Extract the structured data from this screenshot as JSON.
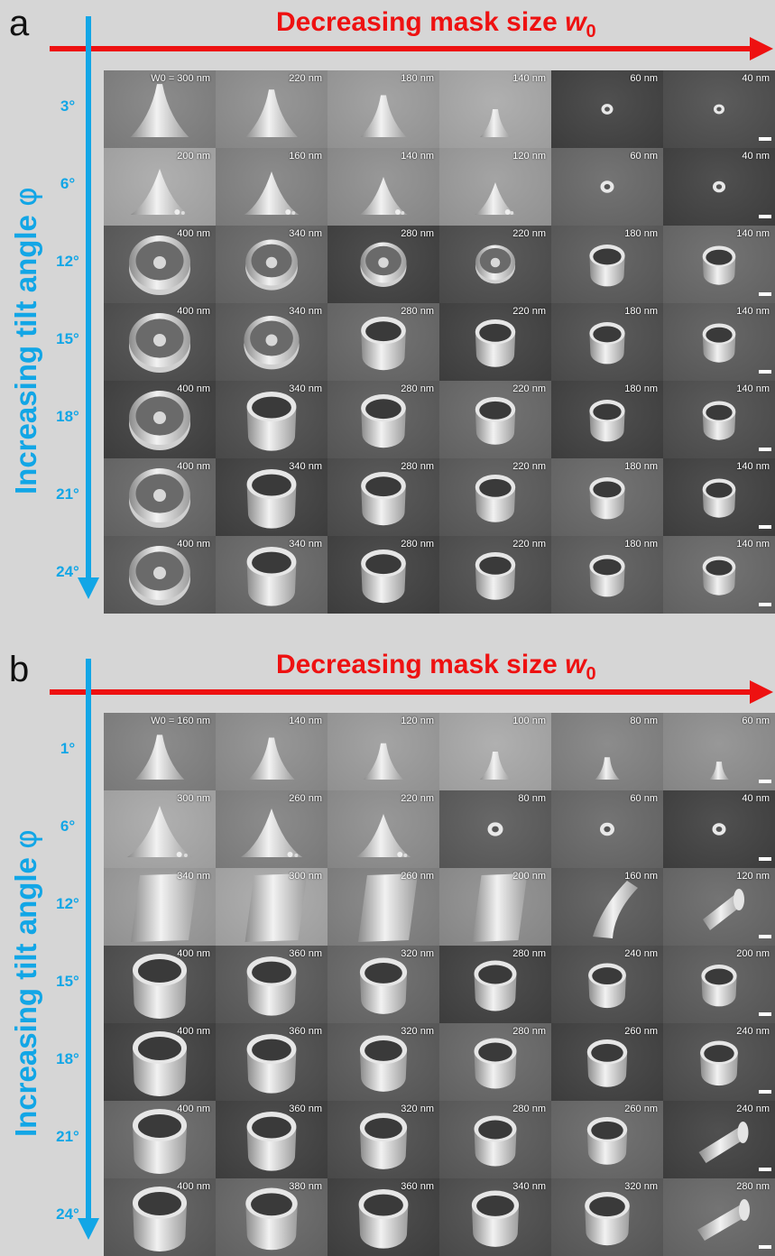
{
  "panels": [
    {
      "id": "a",
      "letter": "a",
      "headline": "Decreasing mask size ",
      "headline_symbol": "w",
      "headline_sub": "0",
      "vertical_label": "Increasing tilt angle ",
      "vertical_symbol": "φ",
      "rows": [
        {
          "angle": "3°",
          "cells": [
            {
              "label": "W0 = 300 nm",
              "kind": "cone",
              "size": 0.95
            },
            {
              "label": "220 nm",
              "kind": "cone",
              "size": 0.85
            },
            {
              "label": "180 nm",
              "kind": "cone",
              "size": 0.75
            },
            {
              "label": "140 nm",
              "kind": "cone",
              "size": 0.5
            },
            {
              "label": "60 nm",
              "kind": "dot",
              "size": 0.35
            },
            {
              "label": "40 nm",
              "kind": "dot",
              "size": 0.3
            }
          ]
        },
        {
          "angle": "6°",
          "cells": [
            {
              "label": "200 nm",
              "kind": "spike",
              "size": 0.85
            },
            {
              "label": "160 nm",
              "kind": "spike",
              "size": 0.8
            },
            {
              "label": "140 nm",
              "kind": "spike",
              "size": 0.7
            },
            {
              "label": "120 nm",
              "kind": "spike",
              "size": 0.6
            },
            {
              "label": "60 nm",
              "kind": "dot",
              "size": 0.45
            },
            {
              "label": "40 nm",
              "kind": "dot",
              "size": 0.4
            }
          ]
        },
        {
          "angle": "12°",
          "cells": [
            {
              "label": "400 nm",
              "kind": "disk",
              "size": 1.0
            },
            {
              "label": "340 nm",
              "kind": "disk",
              "size": 0.85
            },
            {
              "label": "280 nm",
              "kind": "disk",
              "size": 0.75
            },
            {
              "label": "220 nm",
              "kind": "disk",
              "size": 0.65
            },
            {
              "label": "180 nm",
              "kind": "tube",
              "size": 0.6
            },
            {
              "label": "140 nm",
              "kind": "tube",
              "size": 0.55
            }
          ]
        },
        {
          "angle": "15°",
          "cells": [
            {
              "label": "400 nm",
              "kind": "disk",
              "size": 1.0
            },
            {
              "label": "340 nm",
              "kind": "disk",
              "size": 0.9
            },
            {
              "label": "280 nm",
              "kind": "tube",
              "size": 0.8
            },
            {
              "label": "220 nm",
              "kind": "tube",
              "size": 0.7
            },
            {
              "label": "180 nm",
              "kind": "tube",
              "size": 0.6
            },
            {
              "label": "140 nm",
              "kind": "tube",
              "size": 0.55
            }
          ]
        },
        {
          "angle": "18°",
          "cells": [
            {
              "label": "400 nm",
              "kind": "disk",
              "size": 1.0
            },
            {
              "label": "340 nm",
              "kind": "tube",
              "size": 0.9
            },
            {
              "label": "280 nm",
              "kind": "tube",
              "size": 0.8
            },
            {
              "label": "220 nm",
              "kind": "tube",
              "size": 0.7
            },
            {
              "label": "180 nm",
              "kind": "tube",
              "size": 0.6
            },
            {
              "label": "140 nm",
              "kind": "tube",
              "size": 0.55
            }
          ]
        },
        {
          "angle": "21°",
          "cells": [
            {
              "label": "400 nm",
              "kind": "disk",
              "size": 1.0
            },
            {
              "label": "340 nm",
              "kind": "tube",
              "size": 0.9
            },
            {
              "label": "280 nm",
              "kind": "tube",
              "size": 0.8
            },
            {
              "label": "220 nm",
              "kind": "tube",
              "size": 0.7
            },
            {
              "label": "180 nm",
              "kind": "tube",
              "size": 0.6
            },
            {
              "label": "140 nm",
              "kind": "tube",
              "size": 0.55
            }
          ]
        },
        {
          "angle": "24°",
          "cells": [
            {
              "label": "400 nm",
              "kind": "disk",
              "size": 1.0
            },
            {
              "label": "340 nm",
              "kind": "tube",
              "size": 0.9
            },
            {
              "label": "280 nm",
              "kind": "tube",
              "size": 0.8
            },
            {
              "label": "220 nm",
              "kind": "tube",
              "size": 0.7
            },
            {
              "label": "180 nm",
              "kind": "tube",
              "size": 0.6
            },
            {
              "label": "140 nm",
              "kind": "tube",
              "size": 0.55
            }
          ]
        }
      ]
    },
    {
      "id": "b",
      "letter": "b",
      "headline": "Decreasing mask size ",
      "headline_symbol": "w",
      "headline_sub": "0",
      "vertical_label": "Increasing tilt angle ",
      "vertical_symbol": "φ",
      "rows": [
        {
          "angle": "1°",
          "cells": [
            {
              "label": "W0 = 160 nm",
              "kind": "cone",
              "size": 0.8
            },
            {
              "label": "140 nm",
              "kind": "cone",
              "size": 0.75
            },
            {
              "label": "120 nm",
              "kind": "cone",
              "size": 0.65
            },
            {
              "label": "100 nm",
              "kind": "cone",
              "size": 0.5
            },
            {
              "label": "80 nm",
              "kind": "cone",
              "size": 0.4
            },
            {
              "label": "60 nm",
              "kind": "cone",
              "size": 0.32
            }
          ]
        },
        {
          "angle": "6°",
          "cells": [
            {
              "label": "300 nm",
              "kind": "spike",
              "size": 0.95
            },
            {
              "label": "260 nm",
              "kind": "spike",
              "size": 0.9
            },
            {
              "label": "220 nm",
              "kind": "spike",
              "size": 0.8
            },
            {
              "label": "80 nm",
              "kind": "dot",
              "size": 0.55
            },
            {
              "label": "60 nm",
              "kind": "dot",
              "size": 0.5
            },
            {
              "label": "40 nm",
              "kind": "dot",
              "size": 0.45
            }
          ]
        },
        {
          "angle": "12°",
          "cells": [
            {
              "label": "340 nm",
              "kind": "pillar",
              "size": 1.0
            },
            {
              "label": "300 nm",
              "kind": "pillar",
              "size": 0.9
            },
            {
              "label": "260 nm",
              "kind": "pillar",
              "size": 0.85
            },
            {
              "label": "200 nm",
              "kind": "pillar",
              "size": 0.75
            },
            {
              "label": "160 nm",
              "kind": "bent",
              "size": 0.7
            },
            {
              "label": "120 nm",
              "kind": "fallen",
              "size": 0.6
            }
          ]
        },
        {
          "angle": "15°",
          "cells": [
            {
              "label": "400 nm",
              "kind": "tube",
              "size": 1.0
            },
            {
              "label": "360  nm",
              "kind": "tube",
              "size": 0.9
            },
            {
              "label": "320 nm",
              "kind": "tube",
              "size": 0.85
            },
            {
              "label": "280 nm",
              "kind": "tube",
              "size": 0.75
            },
            {
              "label": "240 nm",
              "kind": "tube",
              "size": 0.65
            },
            {
              "label": "200 nm",
              "kind": "tube",
              "size": 0.6
            }
          ]
        },
        {
          "angle": "18°",
          "cells": [
            {
              "label": "400 nm",
              "kind": "tube",
              "size": 1.0
            },
            {
              "label": "360  nm",
              "kind": "tube",
              "size": 0.9
            },
            {
              "label": "320 nm",
              "kind": "tube",
              "size": 0.85
            },
            {
              "label": "280 nm",
              "kind": "tube",
              "size": 0.75
            },
            {
              "label": "260 nm",
              "kind": "tube",
              "size": 0.7
            },
            {
              "label": "240 nm",
              "kind": "tube",
              "size": 0.65
            }
          ]
        },
        {
          "angle": "21°",
          "cells": [
            {
              "label": "400 nm",
              "kind": "tube",
              "size": 1.0
            },
            {
              "label": "360  nm",
              "kind": "tube",
              "size": 0.9
            },
            {
              "label": "320 nm",
              "kind": "tube",
              "size": 0.85
            },
            {
              "label": "280 nm",
              "kind": "tube",
              "size": 0.75
            },
            {
              "label": "260 nm",
              "kind": "tube",
              "size": 0.7
            },
            {
              "label": "240 nm",
              "kind": "fallen",
              "size": 0.75
            }
          ]
        },
        {
          "angle": "24°",
          "cells": [
            {
              "label": "400 nm",
              "kind": "tube",
              "size": 1.0
            },
            {
              "label": "380 nm",
              "kind": "tube",
              "size": 0.95
            },
            {
              "label": "360 nm",
              "kind": "tube",
              "size": 0.9
            },
            {
              "label": "340 nm",
              "kind": "tube",
              "size": 0.85
            },
            {
              "label": "320 nm",
              "kind": "tube",
              "size": 0.8
            },
            {
              "label": "280 nm",
              "kind": "fallen",
              "size": 0.8
            }
          ]
        }
      ]
    }
  ]
}
